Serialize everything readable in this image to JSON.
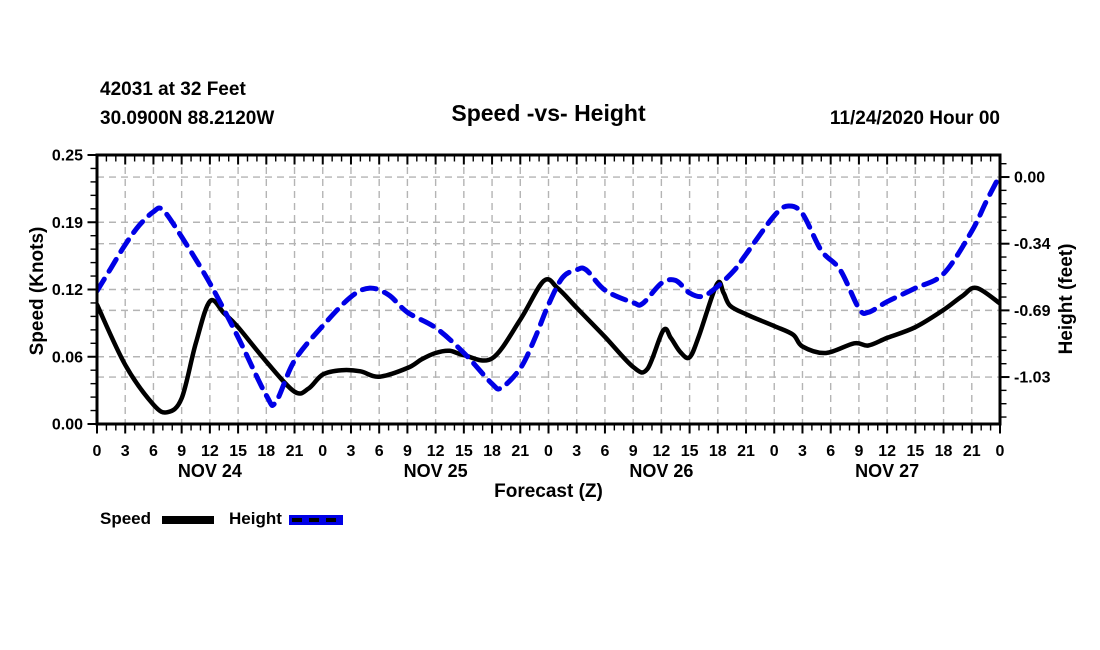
{
  "header": {
    "station_line1": "42031 at 32 Feet",
    "station_line2": "30.0900N 88.2120W",
    "title": "Speed -vs- Height",
    "date_label": "11/24/2020 Hour 00"
  },
  "axes": {
    "left_label": "Speed (Knots)",
    "right_label": "Height (feet)",
    "x_label": "Forecast (Z)"
  },
  "legend": [
    {
      "label": "Speed",
      "color": "#000000",
      "style": "solid"
    },
    {
      "label": "Height",
      "color": "#0000e6",
      "style": "dashed"
    }
  ],
  "colors": {
    "speed_line": "#000000",
    "height_line": "#0000e6",
    "grid": "#b4b4b4",
    "frame": "#000000",
    "background": "#ffffff"
  },
  "chart_data": {
    "type": "line",
    "title": "Speed -vs- Height",
    "x_axis": {
      "label": "Forecast (Z)",
      "unit": "forecast hour (Z)",
      "start_hour": 0,
      "end_hour": 96,
      "major_tick_step": 3,
      "minor_tick_step": 1,
      "hour_label_cycle": [
        "0",
        "3",
        "6",
        "9",
        "12",
        "15",
        "18",
        "21"
      ],
      "final_hour_label": "0",
      "day_labels": [
        "NOV 24",
        "NOV 25",
        "NOV 26",
        "NOV 27"
      ],
      "grid": true
    },
    "left_axis": {
      "label": "Speed (Knots)",
      "min": 0.0,
      "max": 0.25,
      "tick_labels": [
        "0.00",
        "0.06",
        "0.12",
        "0.19",
        "0.25"
      ],
      "tick_values": [
        0,
        0.0625,
        0.125,
        0.1875,
        0.25
      ],
      "minor_step": 0.0125
    },
    "right_axis": {
      "label": "Height (feet)",
      "top": 0.114,
      "bottom": -1.278,
      "tick_labels": [
        "0.00",
        "-0.34",
        "-0.69",
        "-1.03"
      ],
      "tick_values": [
        0,
        -0.345,
        -0.69,
        -1.035
      ],
      "minor_step": 0.069
    },
    "series": [
      {
        "name": "Speed",
        "axis": "left",
        "units": "knots",
        "color": "#000000",
        "line_style": "solid",
        "line_width": 4.5,
        "points": [
          [
            0,
            0.111
          ],
          [
            3,
            0.055
          ],
          [
            6,
            0.018
          ],
          [
            7.5,
            0.011
          ],
          [
            9,
            0.024
          ],
          [
            10.5,
            0.075
          ],
          [
            12,
            0.114
          ],
          [
            13.5,
            0.103
          ],
          [
            15,
            0.09
          ],
          [
            18,
            0.058
          ],
          [
            21,
            0.03
          ],
          [
            22.5,
            0.033
          ],
          [
            24,
            0.046
          ],
          [
            26,
            0.05
          ],
          [
            28,
            0.049
          ],
          [
            30,
            0.044
          ],
          [
            33,
            0.052
          ],
          [
            34.5,
            0.06
          ],
          [
            36,
            0.066
          ],
          [
            37.5,
            0.068
          ],
          [
            39,
            0.064
          ],
          [
            42,
            0.061
          ],
          [
            45,
            0.097
          ],
          [
            47.5,
            0.133
          ],
          [
            49,
            0.126
          ],
          [
            51,
            0.108
          ],
          [
            54,
            0.081
          ],
          [
            57,
            0.053
          ],
          [
            58.5,
            0.051
          ],
          [
            60.2,
            0.087
          ],
          [
            61,
            0.08
          ],
          [
            62,
            0.067
          ],
          [
            63,
            0.062
          ],
          [
            64,
            0.082
          ],
          [
            65.9,
            0.13
          ],
          [
            66.6,
            0.122
          ],
          [
            67.3,
            0.11
          ],
          [
            69,
            0.102
          ],
          [
            72,
            0.091
          ],
          [
            74,
            0.083
          ],
          [
            75,
            0.072
          ],
          [
            77.5,
            0.066
          ],
          [
            80.5,
            0.075
          ],
          [
            82,
            0.073
          ],
          [
            84,
            0.08
          ],
          [
            87,
            0.09
          ],
          [
            90,
            0.106
          ],
          [
            92,
            0.119
          ],
          [
            93.5,
            0.1265
          ],
          [
            96,
            0.112
          ]
        ]
      },
      {
        "name": "Height",
        "axis": "right",
        "units": "feet",
        "color": "#0000e6",
        "line_style": "dashed",
        "dash": [
          14,
          9
        ],
        "line_width": 5,
        "points": [
          [
            0,
            -0.59
          ],
          [
            1.5,
            -0.47
          ],
          [
            3,
            -0.35
          ],
          [
            4.5,
            -0.25
          ],
          [
            6,
            -0.18
          ],
          [
            7,
            -0.17
          ],
          [
            9,
            -0.31
          ],
          [
            12,
            -0.55
          ],
          [
            15,
            -0.83
          ],
          [
            18,
            -1.13
          ],
          [
            19,
            -1.165
          ],
          [
            21,
            -0.95
          ],
          [
            24,
            -0.77
          ],
          [
            27,
            -0.62
          ],
          [
            29,
            -0.575
          ],
          [
            31,
            -0.61
          ],
          [
            33,
            -0.7
          ],
          [
            36,
            -0.78
          ],
          [
            39,
            -0.91
          ],
          [
            42,
            -1.07
          ],
          [
            43,
            -1.09
          ],
          [
            45,
            -0.99
          ],
          [
            46.5,
            -0.84
          ],
          [
            48,
            -0.66
          ],
          [
            49.5,
            -0.52
          ],
          [
            51,
            -0.48
          ],
          [
            52,
            -0.48
          ],
          [
            54,
            -0.585
          ],
          [
            57,
            -0.65
          ],
          [
            58,
            -0.655
          ],
          [
            60,
            -0.55
          ],
          [
            61.5,
            -0.535
          ],
          [
            63,
            -0.6
          ],
          [
            64.4,
            -0.617
          ],
          [
            66,
            -0.565
          ],
          [
            67.8,
            -0.48
          ],
          [
            69,
            -0.4
          ],
          [
            72,
            -0.2
          ],
          [
            73.5,
            -0.15
          ],
          [
            75,
            -0.19
          ],
          [
            77,
            -0.38
          ],
          [
            79,
            -0.48
          ],
          [
            81,
            -0.68
          ],
          [
            82,
            -0.7
          ],
          [
            84,
            -0.645
          ],
          [
            87,
            -0.575
          ],
          [
            90,
            -0.5
          ],
          [
            93,
            -0.28
          ],
          [
            94.5,
            -0.13
          ],
          [
            96,
            0.01
          ]
        ]
      }
    ],
    "grid": {
      "color": "#b4b4b4",
      "dash": [
        7,
        5
      ]
    },
    "legend_position": "bottom-left"
  }
}
